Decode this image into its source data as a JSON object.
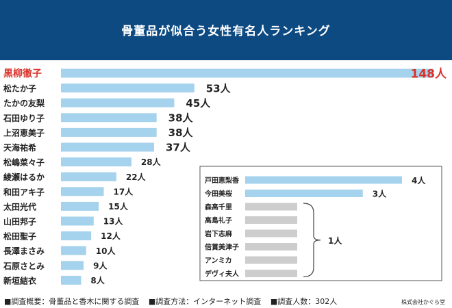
{
  "header": {
    "title": "骨董品が似合う女性有名人ランキング"
  },
  "chart_data": {
    "type": "bar",
    "orientation": "horizontal",
    "title": "骨董品が似合う女性有名人ランキング",
    "unit": "人",
    "highlight_color": "#d9312a",
    "bar_color": "#a5d2ec",
    "gray_bar_color": "#cdcdcd",
    "main": {
      "categories": [
        "黒柳徹子",
        "松たか子",
        "たかの友梨",
        "石田ゆり子",
        "上沼恵美子",
        "天海祐希",
        "松嶋菜々子",
        "綾瀬はるか",
        "和田アキ子",
        "太田光代",
        "山田邦子",
        "松田聖子",
        "長澤まさみ",
        "石原さとみ",
        "新垣結衣"
      ],
      "values": [
        148,
        53,
        45,
        38,
        38,
        37,
        28,
        22,
        17,
        15,
        13,
        12,
        10,
        9,
        8
      ],
      "labels": [
        "148人",
        "53人",
        "45人",
        "38人",
        "38人",
        "37人",
        "28人",
        "22人",
        "17人",
        "15人",
        "13人",
        "12人",
        "10人",
        "9人",
        "8人"
      ]
    },
    "inset": {
      "categories": [
        "戸田恵梨香",
        "今田美桜",
        "森高千里",
        "高島礼子",
        "岩下志麻",
        "倍賞美津子",
        "アンミカ",
        "デヴィ夫人"
      ],
      "values": [
        4,
        3,
        1,
        1,
        1,
        1,
        1,
        1
      ],
      "labels": [
        "4人",
        "3人"
      ],
      "group_label": "1人"
    }
  },
  "footer": {
    "items": [
      "■調査概要：骨董品と香木に関する調査",
      "■調査方法：インターネット調査",
      "■調査人数：302人"
    ],
    "company": "株式会社かぐら堂"
  }
}
